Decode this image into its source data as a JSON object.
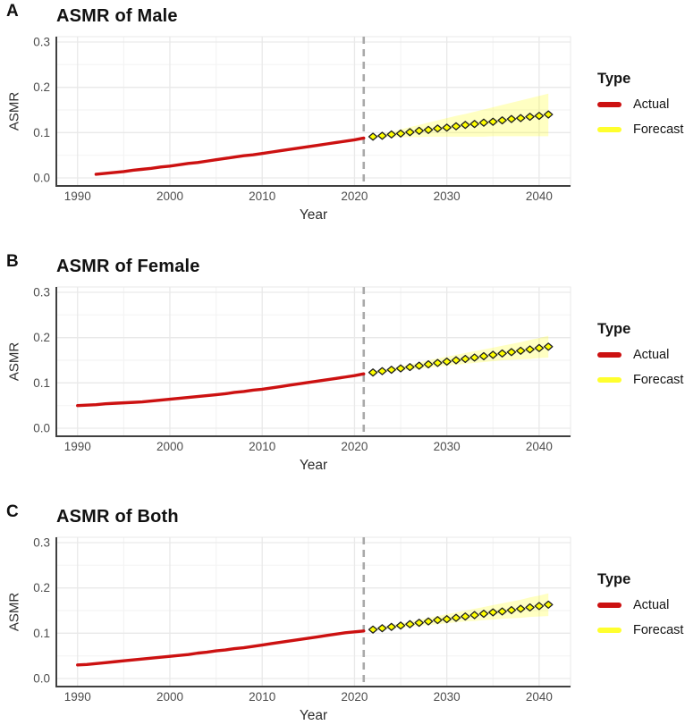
{
  "colors": {
    "actual": "#CC1111",
    "forecast": "#FFFF00",
    "forecast_legend": "#FFFF2E",
    "ribbon": "#FFFF00",
    "vline": "#A9A9A9",
    "axis": "#404040",
    "grid_major": "#E9E9E9",
    "grid_minor": "#F4F4F4",
    "tick_text": "#4D4D4D",
    "point_stroke": "#1F1F1F"
  },
  "legend": {
    "title": "Type",
    "items": [
      {
        "label": "Actual",
        "color": "#CC1111"
      },
      {
        "label": "Forecast",
        "color": "#FFFF2E"
      }
    ]
  },
  "panels": [
    {
      "letter": "A",
      "title": "ASMR of Male",
      "ylabel": "ASMR",
      "xlabel": "Year"
    },
    {
      "letter": "B",
      "title": "ASMR of Female",
      "ylabel": "ASMR",
      "xlabel": "Year"
    },
    {
      "letter": "C",
      "title": "ASMR of Both",
      "ylabel": "ASMR",
      "xlabel": "Year"
    }
  ],
  "chart_data": [
    {
      "type": "line",
      "title": "ASMR of Male",
      "xlabel": "Year",
      "ylabel": "ASMR",
      "xlim": [
        1987.7,
        2043.4
      ],
      "ylim": [
        0,
        0.3
      ],
      "xticks": [
        1990,
        2000,
        2010,
        2020,
        2030,
        2040
      ],
      "yticks": [
        0.0,
        0.1,
        0.2,
        0.3
      ],
      "xticks_minor": [
        1995,
        2005,
        2015,
        2025,
        2035
      ],
      "yticks_minor": [
        0.05,
        0.15,
        0.25
      ],
      "grid": true,
      "legend_position": "right",
      "vline_x": 2021,
      "series": [
        {
          "name": "Actual",
          "style": "line",
          "color": "#CC1111",
          "x": [
            1992,
            1993,
            1994,
            1995,
            1996,
            1997,
            1998,
            1999,
            2000,
            2001,
            2002,
            2003,
            2004,
            2005,
            2006,
            2007,
            2008,
            2009,
            2010,
            2011,
            2012,
            2013,
            2014,
            2015,
            2016,
            2017,
            2018,
            2019,
            2020,
            2021
          ],
          "y": [
            0.008,
            0.01,
            0.012,
            0.014,
            0.017,
            0.019,
            0.021,
            0.024,
            0.026,
            0.029,
            0.032,
            0.034,
            0.037,
            0.04,
            0.043,
            0.046,
            0.049,
            0.051,
            0.054,
            0.057,
            0.06,
            0.063,
            0.066,
            0.069,
            0.072,
            0.075,
            0.078,
            0.081,
            0.084,
            0.088
          ],
          "ribbon": null
        },
        {
          "name": "Forecast",
          "style": "points",
          "color": "#FFFF00",
          "x": [
            2022,
            2023,
            2024,
            2025,
            2026,
            2027,
            2028,
            2029,
            2030,
            2031,
            2032,
            2033,
            2034,
            2035,
            2036,
            2037,
            2038,
            2039,
            2040,
            2041
          ],
          "y": [
            0.091,
            0.093,
            0.096,
            0.098,
            0.101,
            0.104,
            0.106,
            0.109,
            0.111,
            0.114,
            0.117,
            0.119,
            0.122,
            0.124,
            0.127,
            0.13,
            0.132,
            0.135,
            0.137,
            0.14
          ],
          "ribbon": {
            "lower": [
              0.09,
              0.09,
              0.09,
              0.09,
              0.09,
              0.09,
              0.091,
              0.091,
              0.091,
              0.091,
              0.091,
              0.091,
              0.091,
              0.092,
              0.092,
              0.092,
              0.092,
              0.092,
              0.092,
              0.092
            ],
            "upper": [
              0.092,
              0.097,
              0.102,
              0.107,
              0.112,
              0.117,
              0.122,
              0.127,
              0.132,
              0.137,
              0.141,
              0.146,
              0.151,
              0.156,
              0.161,
              0.166,
              0.171,
              0.176,
              0.181,
              0.186
            ]
          }
        }
      ]
    },
    {
      "type": "line",
      "title": "ASMR of Female",
      "xlabel": "Year",
      "ylabel": "ASMR",
      "xlim": [
        1987.7,
        2043.4
      ],
      "ylim": [
        0,
        0.3
      ],
      "xticks": [
        1990,
        2000,
        2010,
        2020,
        2030,
        2040
      ],
      "yticks": [
        0.0,
        0.1,
        0.2,
        0.3
      ],
      "xticks_minor": [
        1995,
        2005,
        2015,
        2025,
        2035
      ],
      "yticks_minor": [
        0.05,
        0.15,
        0.25
      ],
      "grid": true,
      "legend_position": "right",
      "vline_x": 2021,
      "series": [
        {
          "name": "Actual",
          "style": "line",
          "color": "#CC1111",
          "x": [
            1990,
            1991,
            1992,
            1993,
            1994,
            1995,
            1996,
            1997,
            1998,
            1999,
            2000,
            2001,
            2002,
            2003,
            2004,
            2005,
            2006,
            2007,
            2008,
            2009,
            2010,
            2011,
            2012,
            2013,
            2014,
            2015,
            2016,
            2017,
            2018,
            2019,
            2020,
            2021
          ],
          "y": [
            0.05,
            0.051,
            0.052,
            0.054,
            0.055,
            0.056,
            0.057,
            0.058,
            0.06,
            0.062,
            0.064,
            0.066,
            0.068,
            0.07,
            0.072,
            0.074,
            0.076,
            0.079,
            0.081,
            0.084,
            0.086,
            0.089,
            0.092,
            0.095,
            0.098,
            0.101,
            0.104,
            0.107,
            0.11,
            0.113,
            0.116,
            0.12
          ],
          "ribbon": null
        },
        {
          "name": "Forecast",
          "style": "points",
          "color": "#FFFF00",
          "x": [
            2022,
            2023,
            2024,
            2025,
            2026,
            2027,
            2028,
            2029,
            2030,
            2031,
            2032,
            2033,
            2034,
            2035,
            2036,
            2037,
            2038,
            2039,
            2040,
            2041
          ],
          "y": [
            0.123,
            0.126,
            0.129,
            0.132,
            0.135,
            0.138,
            0.141,
            0.144,
            0.147,
            0.15,
            0.153,
            0.156,
            0.159,
            0.162,
            0.165,
            0.168,
            0.171,
            0.174,
            0.177,
            0.18
          ],
          "ribbon": {
            "lower": [
              0.121,
              0.123,
              0.125,
              0.127,
              0.129,
              0.131,
              0.133,
              0.136,
              0.138,
              0.14,
              0.142,
              0.144,
              0.146,
              0.148,
              0.15,
              0.151,
              0.152,
              0.153,
              0.155,
              0.156
            ],
            "upper": [
              0.125,
              0.129,
              0.133,
              0.137,
              0.141,
              0.145,
              0.15,
              0.154,
              0.158,
              0.162,
              0.166,
              0.17,
              0.174,
              0.178,
              0.182,
              0.186,
              0.19,
              0.195,
              0.199,
              0.204
            ]
          }
        }
      ]
    },
    {
      "type": "line",
      "title": "ASMR of Both",
      "xlabel": "Year",
      "ylabel": "ASMR",
      "xlim": [
        1987.7,
        2043.4
      ],
      "ylim": [
        0,
        0.3
      ],
      "xticks": [
        1990,
        2000,
        2010,
        2020,
        2030,
        2040
      ],
      "yticks": [
        0.0,
        0.1,
        0.2,
        0.3
      ],
      "xticks_minor": [
        1995,
        2005,
        2015,
        2025,
        2035
      ],
      "yticks_minor": [
        0.05,
        0.15,
        0.25
      ],
      "grid": true,
      "legend_position": "right",
      "vline_x": 2021,
      "series": [
        {
          "name": "Actual",
          "style": "line",
          "color": "#CC1111",
          "x": [
            1990,
            1991,
            1992,
            1993,
            1994,
            1995,
            1996,
            1997,
            1998,
            1999,
            2000,
            2001,
            2002,
            2003,
            2004,
            2005,
            2006,
            2007,
            2008,
            2009,
            2010,
            2011,
            2012,
            2013,
            2014,
            2015,
            2016,
            2017,
            2018,
            2019,
            2020,
            2021
          ],
          "y": [
            0.03,
            0.031,
            0.033,
            0.035,
            0.037,
            0.039,
            0.041,
            0.043,
            0.045,
            0.047,
            0.049,
            0.051,
            0.053,
            0.056,
            0.058,
            0.061,
            0.063,
            0.066,
            0.068,
            0.071,
            0.074,
            0.077,
            0.08,
            0.083,
            0.086,
            0.089,
            0.092,
            0.095,
            0.098,
            0.101,
            0.103,
            0.105
          ],
          "ribbon": null
        },
        {
          "name": "Forecast",
          "style": "points",
          "color": "#FFFF00",
          "x": [
            2022,
            2023,
            2024,
            2025,
            2026,
            2027,
            2028,
            2029,
            2030,
            2031,
            2032,
            2033,
            2034,
            2035,
            2036,
            2037,
            2038,
            2039,
            2040,
            2041
          ],
          "y": [
            0.108,
            0.111,
            0.114,
            0.117,
            0.12,
            0.123,
            0.126,
            0.129,
            0.131,
            0.134,
            0.137,
            0.14,
            0.143,
            0.146,
            0.148,
            0.151,
            0.154,
            0.157,
            0.16,
            0.163
          ],
          "ribbon": {
            "lower": [
              0.106,
              0.108,
              0.11,
              0.112,
              0.114,
              0.116,
              0.118,
              0.12,
              0.122,
              0.124,
              0.126,
              0.127,
              0.129,
              0.13,
              0.132,
              0.133,
              0.134,
              0.136,
              0.137,
              0.138
            ],
            "upper": [
              0.11,
              0.114,
              0.118,
              0.122,
              0.126,
              0.13,
              0.134,
              0.138,
              0.142,
              0.146,
              0.15,
              0.154,
              0.158,
              0.162,
              0.166,
              0.17,
              0.174,
              0.179,
              0.183,
              0.188
            ]
          }
        }
      ]
    }
  ]
}
